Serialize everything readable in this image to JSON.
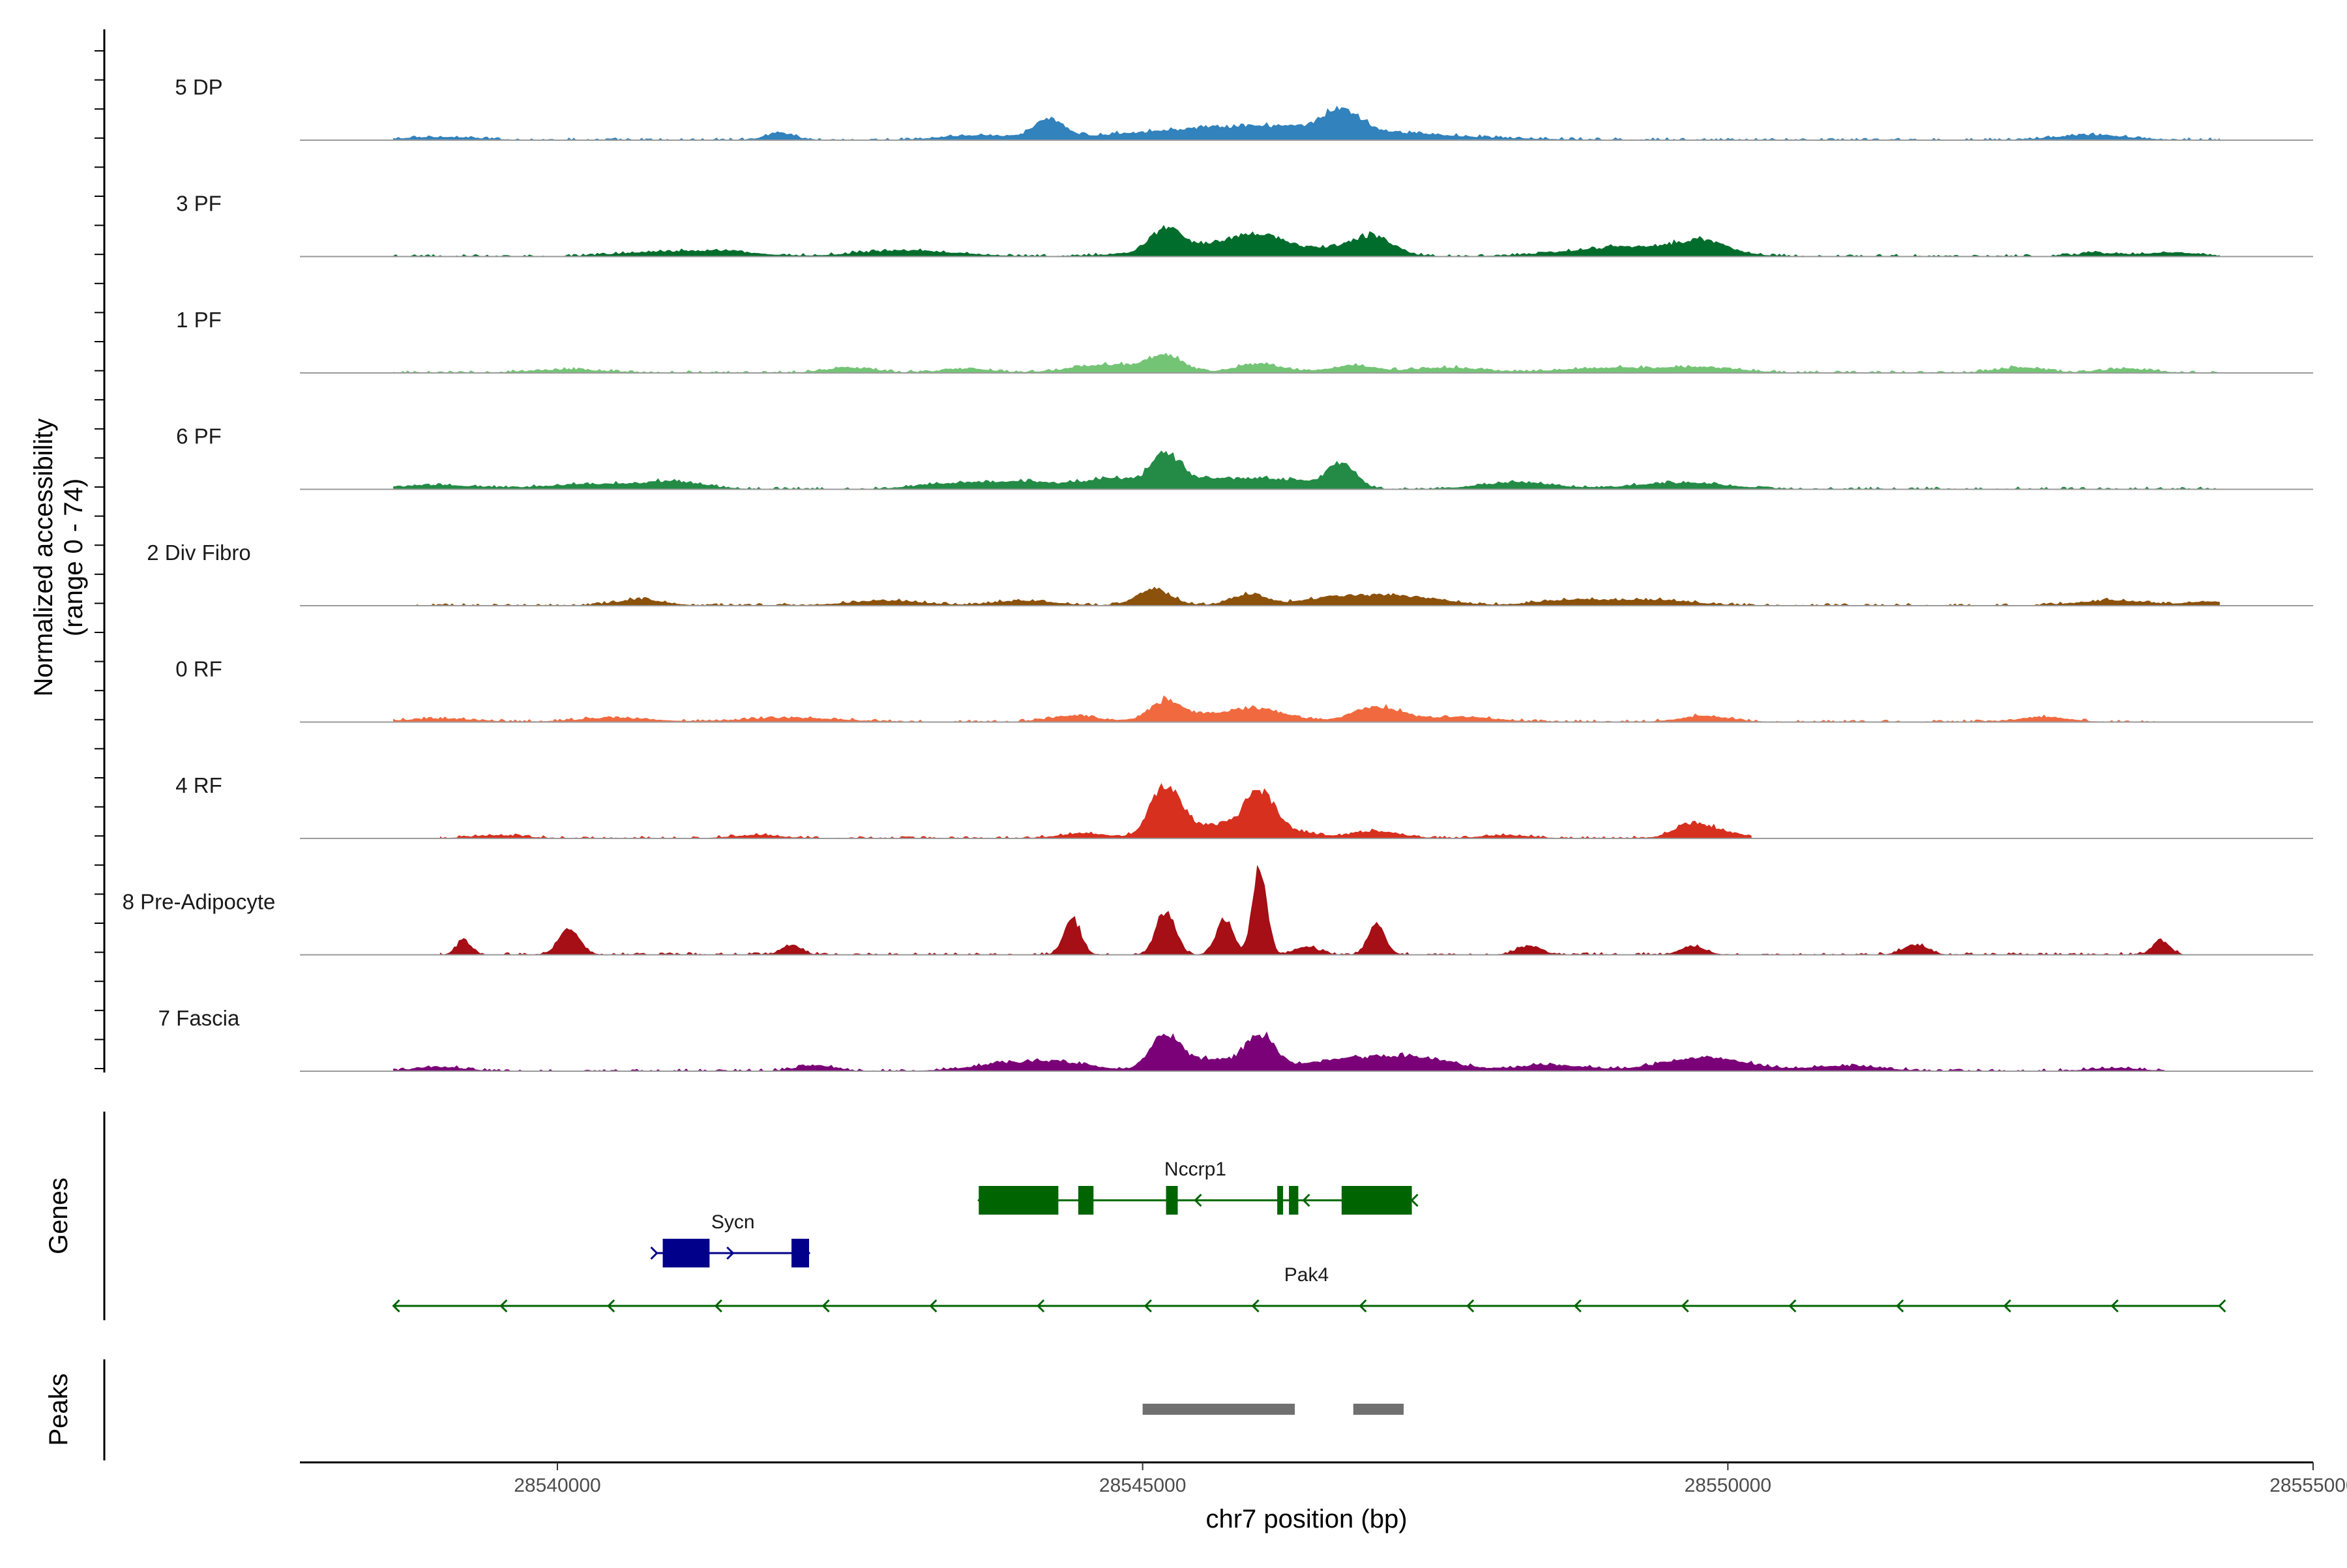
{
  "chart_data": {
    "type": "area",
    "title": "",
    "ylabel_lines": [
      "Normalized accessibility",
      "(range 0 - 74)"
    ],
    "xlabel": "chr7 position (bp)",
    "xlim": [
      28537800,
      28555000
    ],
    "x_ticks": [
      28540000,
      28545000,
      28550000,
      28555000
    ],
    "x_tick_labels": [
      "28540000",
      "28545000",
      "28550000",
      "28555000"
    ],
    "y_range": [
      0,
      74
    ],
    "series": [
      {
        "name": "5 DP",
        "color": "#3182BD",
        "extent": [
          28538600,
          28554200
        ],
        "peaks": [
          [
            28544200,
            0.19,
            120
          ],
          [
            28545700,
            0.09,
            900
          ],
          [
            28546700,
            0.21,
            150
          ],
          [
            28546600,
            0.07,
            900
          ],
          [
            28541900,
            0.07,
            120
          ],
          [
            28553100,
            0.05,
            300
          ],
          [
            28539000,
            0.03,
            300
          ],
          [
            28543600,
            0.04,
            300
          ]
        ]
      },
      {
        "name": "3 PF",
        "color": "#006D2C",
        "extent": [
          28538600,
          28554200
        ],
        "peaks": [
          [
            28545200,
            0.22,
            120
          ],
          [
            28545700,
            0.13,
            500
          ],
          [
            28546000,
            0.13,
            200
          ],
          [
            28546800,
            0.1,
            250
          ],
          [
            28547000,
            0.13,
            150
          ],
          [
            28549200,
            0.1,
            500
          ],
          [
            28549800,
            0.12,
            200
          ],
          [
            28543000,
            0.06,
            400
          ],
          [
            28541400,
            0.05,
            300
          ],
          [
            28540800,
            0.04,
            300
          ],
          [
            28553800,
            0.04,
            200
          ],
          [
            28553200,
            0.03,
            200
          ]
        ]
      },
      {
        "name": "1 PF",
        "color": "#74C476",
        "extent": [
          28538600,
          28554200
        ],
        "peaks": [
          [
            28545200,
            0.16,
            150
          ],
          [
            28544700,
            0.08,
            300
          ],
          [
            28546000,
            0.09,
            200
          ],
          [
            28546800,
            0.07,
            200
          ],
          [
            28547600,
            0.05,
            300
          ],
          [
            28549000,
            0.05,
            400
          ],
          [
            28549800,
            0.05,
            300
          ],
          [
            28542500,
            0.05,
            200
          ],
          [
            28543500,
            0.04,
            200
          ],
          [
            28552500,
            0.05,
            200
          ],
          [
            28553400,
            0.04,
            200
          ],
          [
            28540100,
            0.03,
            300
          ]
        ]
      },
      {
        "name": "6 PF",
        "color": "#238B45",
        "extent": [
          28538600,
          28554200
        ],
        "peaks": [
          [
            28545200,
            0.28,
            120
          ],
          [
            28546700,
            0.24,
            120
          ],
          [
            28545500,
            0.1,
            400
          ],
          [
            28544700,
            0.09,
            250
          ],
          [
            28546200,
            0.08,
            300
          ],
          [
            28548200,
            0.07,
            300
          ],
          [
            28549600,
            0.06,
            400
          ],
          [
            28541000,
            0.07,
            250
          ],
          [
            28540300,
            0.05,
            400
          ],
          [
            28543400,
            0.06,
            300
          ],
          [
            28544000,
            0.07,
            250
          ],
          [
            28539000,
            0.04,
            300
          ]
        ]
      },
      {
        "name": "2 Div Fibro",
        "color": "#8C510A",
        "extent": [
          28538800,
          28554200
        ],
        "peaks": [
          [
            28545100,
            0.16,
            150
          ],
          [
            28545900,
            0.11,
            150
          ],
          [
            28546700,
            0.09,
            300
          ],
          [
            28547300,
            0.08,
            300
          ],
          [
            28548700,
            0.06,
            300
          ],
          [
            28549400,
            0.05,
            300
          ],
          [
            28540700,
            0.06,
            200
          ],
          [
            28542800,
            0.05,
            300
          ],
          [
            28544000,
            0.05,
            250
          ],
          [
            28553300,
            0.05,
            300
          ],
          [
            28554100,
            0.04,
            150
          ]
        ]
      },
      {
        "name": "0 RF",
        "color": "#F16A3F",
        "extent": [
          28538600,
          28553700
        ],
        "peaks": [
          [
            28545200,
            0.18,
            130
          ],
          [
            28546000,
            0.09,
            250
          ],
          [
            28547000,
            0.15,
            200
          ],
          [
            28545600,
            0.07,
            400
          ],
          [
            28547700,
            0.05,
            300
          ],
          [
            28549800,
            0.06,
            200
          ],
          [
            28544400,
            0.06,
            200
          ],
          [
            28542000,
            0.04,
            400
          ],
          [
            28540500,
            0.04,
            300
          ],
          [
            28552700,
            0.05,
            200
          ],
          [
            28539000,
            0.03,
            300
          ]
        ]
      },
      {
        "name": "4 RF",
        "color": "#D7301F",
        "extent": [
          28539000,
          28550200
        ],
        "peaks": [
          [
            28545200,
            0.55,
            130
          ],
          [
            28546000,
            0.46,
            130
          ],
          [
            28545700,
            0.1,
            150
          ],
          [
            28545500,
            0.07,
            150
          ],
          [
            28546300,
            0.06,
            200
          ],
          [
            28547000,
            0.07,
            200
          ],
          [
            28549700,
            0.15,
            150
          ],
          [
            28550000,
            0.05,
            150
          ],
          [
            28544500,
            0.05,
            200
          ],
          [
            28541700,
            0.03,
            200
          ],
          [
            28539500,
            0.03,
            200
          ],
          [
            28548100,
            0.03,
            200
          ]
        ]
      },
      {
        "name": "8 Pre-Adipocyte",
        "color": "#A50F15",
        "extent": [
          28539000,
          28553900
        ],
        "peaks": [
          [
            28546000,
            0.9,
            60
          ],
          [
            28545200,
            0.45,
            80
          ],
          [
            28545700,
            0.38,
            70
          ],
          [
            28547000,
            0.3,
            70
          ],
          [
            28544400,
            0.37,
            70
          ],
          [
            28540100,
            0.25,
            90
          ],
          [
            28539200,
            0.15,
            60
          ],
          [
            28542000,
            0.1,
            80
          ],
          [
            28546400,
            0.08,
            100
          ],
          [
            28548300,
            0.09,
            100
          ],
          [
            28549700,
            0.09,
            100
          ],
          [
            28551600,
            0.1,
            100
          ],
          [
            28553700,
            0.15,
            70
          ]
        ]
      },
      {
        "name": "7 Fascia",
        "color": "#7A0177",
        "extent": [
          28538600,
          28553800
        ],
        "peaks": [
          [
            28545200,
            0.38,
            130
          ],
          [
            28546000,
            0.35,
            130
          ],
          [
            28545600,
            0.12,
            150
          ],
          [
            28546800,
            0.12,
            400
          ],
          [
            28547400,
            0.1,
            300
          ],
          [
            28549800,
            0.14,
            350
          ],
          [
            28544300,
            0.08,
            300
          ],
          [
            28543800,
            0.06,
            300
          ],
          [
            28542200,
            0.06,
            150
          ],
          [
            28551000,
            0.05,
            300
          ],
          [
            28548500,
            0.06,
            300
          ],
          [
            28539000,
            0.04,
            200
          ],
          [
            28553300,
            0.03,
            200
          ]
        ]
      }
    ],
    "genes_label": "Genes",
    "genes": [
      {
        "name": "Nccrp1",
        "color": "#006400",
        "start": 28543600,
        "end": 28547300,
        "strand": "-",
        "row": 1,
        "exons": [
          [
            28543600,
            28544280
          ],
          [
            28544450,
            28544580
          ],
          [
            28545200,
            28545300
          ],
          [
            28546150,
            28546200
          ],
          [
            28546250,
            28546330
          ],
          [
            28546700,
            28547300
          ]
        ]
      },
      {
        "name": "Sycn",
        "color": "#00008B",
        "start": 28540850,
        "end": 28542150,
        "strand": "+",
        "row": 2,
        "exons": [
          [
            28540900,
            28541300
          ],
          [
            28542000,
            28542150
          ]
        ]
      },
      {
        "name": "Pak4",
        "color": "#006400",
        "start": 28538600,
        "end": 28554200,
        "strand": "-",
        "row": 3,
        "exons": []
      }
    ],
    "peaks_label": "Peaks",
    "peaks": [
      [
        28545000,
        28546300
      ],
      [
        28546800,
        28547230
      ]
    ],
    "peaks_color": "#707070"
  }
}
